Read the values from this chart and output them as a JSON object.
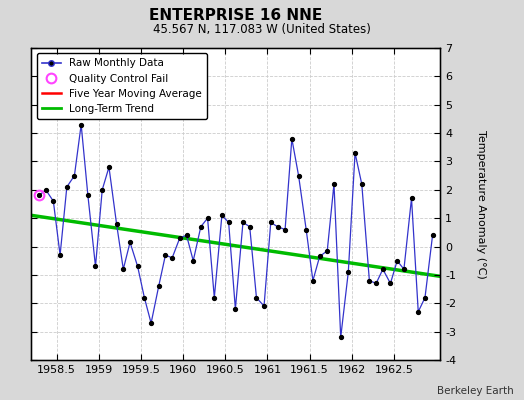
{
  "title": "ENTERPRISE 16 NNE",
  "subtitle": "45.567 N, 117.083 W (United States)",
  "ylabel": "Temperature Anomaly (°C)",
  "credit": "Berkeley Earth",
  "ylim": [
    -4,
    7
  ],
  "xlim": [
    1958.2,
    1963.05
  ],
  "xticks": [
    1958.5,
    1959.0,
    1959.5,
    1960.0,
    1960.5,
    1961.0,
    1961.5,
    1962.0,
    1962.5
  ],
  "yticks": [
    -4,
    -3,
    -2,
    -1,
    0,
    1,
    2,
    3,
    4,
    5,
    6,
    7
  ],
  "bg_color": "#d8d8d8",
  "plot_bg_color": "#ffffff",
  "line_color": "#3333cc",
  "marker_color": "#000000",
  "trend_color": "#00bb00",
  "mavg_color": "#ff0000",
  "qc_color": "#ff44ff",
  "raw_data": {
    "x": [
      1958.29,
      1958.37,
      1958.46,
      1958.54,
      1958.62,
      1958.71,
      1958.79,
      1958.87,
      1958.96,
      1959.04,
      1959.12,
      1959.21,
      1959.29,
      1959.37,
      1959.46,
      1959.54,
      1959.62,
      1959.71,
      1959.79,
      1959.87,
      1959.96,
      1960.04,
      1960.12,
      1960.21,
      1960.29,
      1960.37,
      1960.46,
      1960.54,
      1960.62,
      1960.71,
      1960.79,
      1960.87,
      1960.96,
      1961.04,
      1961.12,
      1961.21,
      1961.29,
      1961.37,
      1961.46,
      1961.54,
      1961.62,
      1961.71,
      1961.79,
      1961.87,
      1961.96,
      1962.04,
      1962.12,
      1962.21,
      1962.29,
      1962.37,
      1962.46,
      1962.54,
      1962.62,
      1962.71,
      1962.79,
      1962.87,
      1962.96
    ],
    "y": [
      1.8,
      2.0,
      1.6,
      -0.3,
      2.1,
      2.5,
      4.3,
      1.8,
      -0.7,
      2.0,
      2.8,
      0.8,
      -0.8,
      0.15,
      -0.7,
      -1.8,
      -2.7,
      -1.4,
      -0.3,
      -0.4,
      0.3,
      0.4,
      -0.5,
      0.7,
      1.0,
      -1.8,
      1.1,
      0.85,
      -2.2,
      0.85,
      0.7,
      -1.8,
      -2.1,
      0.85,
      0.7,
      0.6,
      3.8,
      2.5,
      0.6,
      -1.2,
      -0.35,
      -0.15,
      2.2,
      -3.2,
      -0.9,
      3.3,
      2.2,
      -1.2,
      -1.3,
      -0.8,
      -1.3,
      -0.5,
      -0.8,
      1.7,
      -2.3,
      -1.8,
      0.4
    ]
  },
  "qc_fail_x": [
    1958.29
  ],
  "qc_fail_y": [
    1.8
  ],
  "trend_x": [
    1958.2,
    1963.05
  ],
  "trend_y": [
    1.1,
    -1.05
  ]
}
